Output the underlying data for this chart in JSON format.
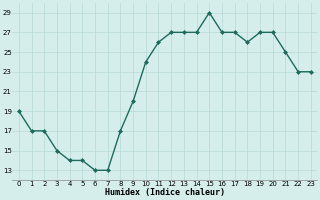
{
  "x": [
    0,
    1,
    2,
    3,
    4,
    5,
    6,
    7,
    8,
    9,
    10,
    11,
    12,
    13,
    14,
    15,
    16,
    17,
    18,
    19,
    20,
    21,
    22,
    23
  ],
  "y": [
    19,
    17,
    17,
    15,
    14,
    14,
    13,
    13,
    17,
    20,
    24,
    26,
    27,
    27,
    27,
    29,
    27,
    27,
    26,
    27,
    27,
    25,
    23,
    23
  ],
  "line_color": "#1e6b5e",
  "marker": "D",
  "markersize": 2.0,
  "linewidth": 1.0,
  "bg_color": "#d5eeec",
  "grid_color": "#b8d8d5",
  "xlabel": "Humidex (Indice chaleur)",
  "ylim": [
    12,
    30
  ],
  "yticks": [
    13,
    15,
    17,
    19,
    21,
    23,
    25,
    27,
    29
  ],
  "xticks": [
    0,
    1,
    2,
    3,
    4,
    5,
    6,
    7,
    8,
    9,
    10,
    11,
    12,
    13,
    14,
    15,
    16,
    17,
    18,
    19,
    20,
    21,
    22,
    23
  ],
  "xlim": [
    -0.5,
    23.5
  ],
  "tick_fontsize": 5.0,
  "xlabel_fontsize": 6.0
}
